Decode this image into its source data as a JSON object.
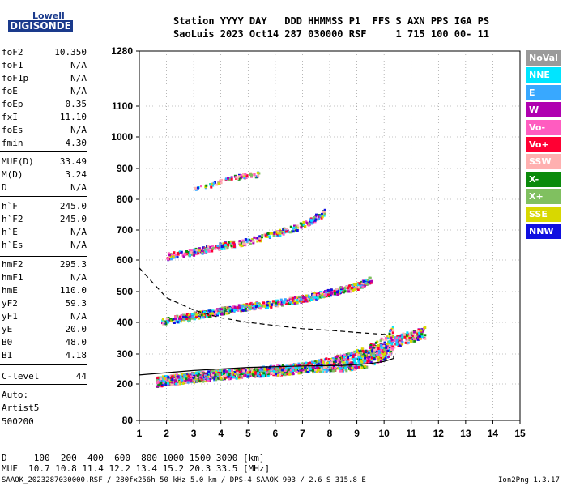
{
  "logo": {
    "line1": "Lowell",
    "line2": "DIGISONDE"
  },
  "header": {
    "line1": "Station YYYY DAY   DDD HHMMSS P1  FFS S AXN PPS IGA PS",
    "line2": "SaoLuis 2023 Oct14 287 030000 RSF     1 715 100 00- 11"
  },
  "params": [
    {
      "name": "foF2",
      "value": "10.350"
    },
    {
      "name": "foF1",
      "value": "N/A"
    },
    {
      "name": "foF1p",
      "value": "N/A"
    },
    {
      "name": "foE",
      "value": "N/A"
    },
    {
      "name": "foEp",
      "value": "0.35"
    },
    {
      "name": "fxI",
      "value": "11.10"
    },
    {
      "name": "foEs",
      "value": "N/A"
    },
    {
      "name": "fmin",
      "value": "4.30"
    },
    {
      "name": "MUF(D)",
      "value": "33.49"
    },
    {
      "name": "M(D)",
      "value": "3.24"
    },
    {
      "name": "D",
      "value": "N/A"
    },
    {
      "name": "h`F",
      "value": "245.0"
    },
    {
      "name": "h`F2",
      "value": "245.0"
    },
    {
      "name": "h`E",
      "value": "N/A"
    },
    {
      "name": "h`Es",
      "value": "N/A"
    },
    {
      "name": "hmF2",
      "value": "295.3"
    },
    {
      "name": "hmF1",
      "value": "N/A"
    },
    {
      "name": "hmE",
      "value": "110.0"
    },
    {
      "name": "yF2",
      "value": "59.3"
    },
    {
      "name": "yF1",
      "value": "N/A"
    },
    {
      "name": "yE",
      "value": "20.0"
    },
    {
      "name": "B0",
      "value": "48.0"
    },
    {
      "name": "B1",
      "value": "4.18"
    },
    {
      "name": "C-level",
      "value": "44"
    }
  ],
  "auto_block": {
    "line1": "Auto:",
    "line2": "Artist5",
    "line3": "500200"
  },
  "legend": [
    {
      "label": "NoVal",
      "color": "#9a9a9a"
    },
    {
      "label": "NNE",
      "color": "#00e5ff"
    },
    {
      "label": "E",
      "color": "#38a8ff"
    },
    {
      "label": "W",
      "color": "#b000b0"
    },
    {
      "label": "Vo-",
      "color": "#ff5cc0"
    },
    {
      "label": "Vo+",
      "color": "#ff0033"
    },
    {
      "label": "SSW",
      "color": "#ffb0b0"
    },
    {
      "label": "X-",
      "color": "#0b8a0b"
    },
    {
      "label": "X+",
      "color": "#80c060"
    },
    {
      "label": "SSE",
      "color": "#d8d800"
    },
    {
      "label": "NNW",
      "color": "#1010e0"
    }
  ],
  "bottom": {
    "d_line": "D     100  200  400  600  800 1000 1500 3000 [km]",
    "muf_line": "MUF  10.7 10.8 11.4 12.2 13.4 15.2 20.3 33.5 [MHz]",
    "footer_left": "SAAOK_2023287030000.RSF / 280fx256h 50 kHz 5.0 km / DPS-4 SAAOK 903 / 2.6 S 315.8 E",
    "footer_right": "Ion2Png 1.3.17"
  },
  "chart_data": {
    "type": "scatter",
    "x_ticks": [
      1,
      2,
      3,
      4,
      5,
      6,
      7,
      8,
      9,
      10,
      11,
      12,
      13,
      14,
      15
    ],
    "y_ticks": [
      80,
      200,
      300,
      400,
      500,
      600,
      700,
      800,
      900,
      1000,
      1100,
      1280
    ],
    "xlim": [
      1,
      15
    ],
    "ylim": [
      80,
      1280
    ],
    "y_scale": "nonlinear (ionogram virtual height)",
    "grid": true,
    "traces": [
      {
        "name": "O-trace F2",
        "x": [
          1.6,
          2.5,
          3.5,
          4.5,
          5.5,
          6.5,
          7.5,
          8.5,
          9.3,
          10.0,
          10.3
        ],
        "y": [
          210,
          220,
          230,
          238,
          245,
          252,
          262,
          275,
          292,
          320,
          350
        ]
      },
      {
        "name": "X-trace F2",
        "x": [
          9.0,
          9.5,
          10.0,
          10.5,
          11.0,
          11.5
        ],
        "y": [
          290,
          300,
          320,
          345,
          360,
          370
        ]
      },
      {
        "name": "2nd hop",
        "x": [
          1.8,
          3.0,
          4.0,
          5.0,
          6.0,
          7.0,
          8.0,
          9.0,
          9.5
        ],
        "y": [
          405,
          425,
          440,
          455,
          465,
          480,
          500,
          520,
          540
        ]
      },
      {
        "name": "3rd hop",
        "x": [
          2.0,
          3.0,
          4.0,
          5.0,
          6.0,
          7.0,
          7.8
        ],
        "y": [
          615,
          630,
          650,
          665,
          690,
          720,
          760
        ]
      },
      {
        "name": "4th hop",
        "x": [
          3.0,
          3.5,
          4.0,
          4.5,
          5.5
        ],
        "y": [
          835,
          845,
          865,
          875,
          885
        ]
      }
    ],
    "curves": [
      {
        "name": "true height profile",
        "x": [
          1.0,
          3.0,
          5.0,
          7.0,
          8.5,
          9.5,
          10.0,
          10.35,
          10.35
        ],
        "y": [
          230,
          245,
          255,
          260,
          262,
          268,
          275,
          285,
          295
        ]
      },
      {
        "name": "ray-path dashed",
        "x": [
          1.0,
          2.0,
          3.0,
          4.0,
          5.0,
          6.0,
          7.0,
          8.0,
          9.0,
          10.0,
          10.35
        ],
        "y": [
          575,
          480,
          440,
          415,
          400,
          390,
          380,
          375,
          368,
          362,
          360
        ]
      }
    ]
  }
}
